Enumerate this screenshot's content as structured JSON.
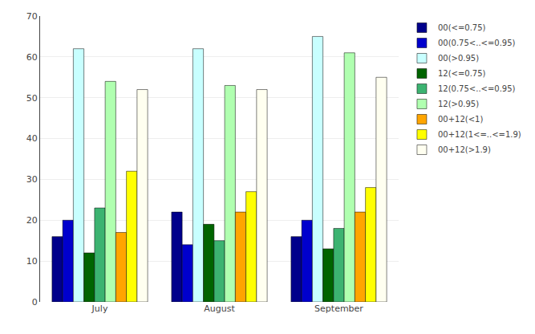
{
  "chart_data": {
    "type": "bar",
    "categories": [
      "July",
      "August",
      "September"
    ],
    "series": [
      {
        "name": "00(<=0.75)",
        "color": "#00008B",
        "values": [
          16,
          22,
          16
        ]
      },
      {
        "name": "00(0.75<..<=0.95)",
        "color": "#0000CD",
        "values": [
          20,
          14,
          20
        ]
      },
      {
        "name": "00(>0.95)",
        "color": "#C8FFFF",
        "values": [
          62,
          62,
          65
        ]
      },
      {
        "name": "12(<=0.75)",
        "color": "#006400",
        "values": [
          12,
          19,
          13
        ]
      },
      {
        "name": "12(0.75<..<=0.95)",
        "color": "#3CB371",
        "values": [
          23,
          15,
          18
        ]
      },
      {
        "name": "12(>0.95)",
        "color": "#B0FFB0",
        "values": [
          54,
          53,
          61
        ]
      },
      {
        "name": "00+12(<1)",
        "color": "#FFA500",
        "values": [
          17,
          22,
          22
        ]
      },
      {
        "name": "00+12(1<=..<=1.9)",
        "color": "#FFFF00",
        "values": [
          32,
          27,
          28
        ]
      },
      {
        "name": "00+12(>1.9)",
        "color": "#FFFFF0",
        "values": [
          52,
          52,
          55
        ]
      }
    ],
    "ylim": [
      0,
      70
    ],
    "yticks": [
      0,
      10,
      20,
      30,
      40,
      50,
      60,
      70
    ],
    "grid": true,
    "legend": "upper right"
  }
}
